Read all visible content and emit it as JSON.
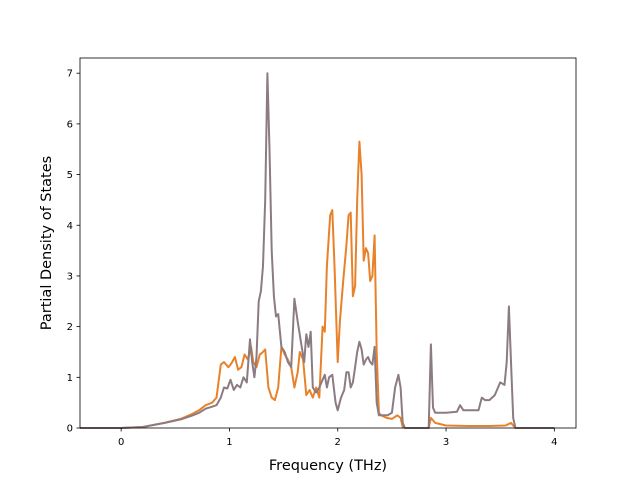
{
  "chart_data": {
    "type": "line",
    "title": "",
    "xlabel": "Frequency (THz)",
    "ylabel": "Partial Density of States",
    "xlim": [
      -0.38,
      4.2
    ],
    "ylim": [
      0,
      7.3
    ],
    "xticks": [
      0,
      1,
      2,
      3,
      4
    ],
    "yticks": [
      0,
      1,
      2,
      3,
      4,
      5,
      6,
      7
    ],
    "grid": false,
    "legend": "none",
    "series": [
      {
        "color": "#e8822a",
        "points": [
          [
            -0.38,
            0
          ],
          [
            0.0,
            0.0
          ],
          [
            0.2,
            0.02
          ],
          [
            0.4,
            0.1
          ],
          [
            0.55,
            0.18
          ],
          [
            0.65,
            0.27
          ],
          [
            0.72,
            0.35
          ],
          [
            0.78,
            0.45
          ],
          [
            0.84,
            0.5
          ],
          [
            0.88,
            0.6
          ],
          [
            0.92,
            1.25
          ],
          [
            0.95,
            1.3
          ],
          [
            0.99,
            1.2
          ],
          [
            1.02,
            1.28
          ],
          [
            1.05,
            1.4
          ],
          [
            1.08,
            1.15
          ],
          [
            1.11,
            1.2
          ],
          [
            1.14,
            1.45
          ],
          [
            1.17,
            1.35
          ],
          [
            1.2,
            1.6
          ],
          [
            1.22,
            1.3
          ],
          [
            1.25,
            1.2
          ],
          [
            1.28,
            1.45
          ],
          [
            1.3,
            1.48
          ],
          [
            1.33,
            1.55
          ],
          [
            1.36,
            0.8
          ],
          [
            1.39,
            0.6
          ],
          [
            1.42,
            0.55
          ],
          [
            1.45,
            0.8
          ],
          [
            1.48,
            1.6
          ],
          [
            1.51,
            1.45
          ],
          [
            1.54,
            1.35
          ],
          [
            1.57,
            1.2
          ],
          [
            1.6,
            0.8
          ],
          [
            1.63,
            1.1
          ],
          [
            1.65,
            1.5
          ],
          [
            1.68,
            1.35
          ],
          [
            1.71,
            0.65
          ],
          [
            1.74,
            0.75
          ],
          [
            1.77,
            0.6
          ],
          [
            1.8,
            0.8
          ],
          [
            1.83,
            0.6
          ],
          [
            1.86,
            2.0
          ],
          [
            1.88,
            1.9
          ],
          [
            1.9,
            3.2
          ],
          [
            1.93,
            4.2
          ],
          [
            1.95,
            4.3
          ],
          [
            1.97,
            3.2
          ],
          [
            2.0,
            1.3
          ],
          [
            2.02,
            2.1
          ],
          [
            2.05,
            2.9
          ],
          [
            2.08,
            3.6
          ],
          [
            2.1,
            4.2
          ],
          [
            2.12,
            4.25
          ],
          [
            2.14,
            2.6
          ],
          [
            2.16,
            2.8
          ],
          [
            2.18,
            4.5
          ],
          [
            2.2,
            5.65
          ],
          [
            2.22,
            5.0
          ],
          [
            2.24,
            3.3
          ],
          [
            2.26,
            3.55
          ],
          [
            2.28,
            3.45
          ],
          [
            2.3,
            2.9
          ],
          [
            2.32,
            3.0
          ],
          [
            2.34,
            3.8
          ],
          [
            2.36,
            1.5
          ],
          [
            2.38,
            0.3
          ],
          [
            2.4,
            0.25
          ],
          [
            2.45,
            0.2
          ],
          [
            2.5,
            0.18
          ],
          [
            2.55,
            0.25
          ],
          [
            2.58,
            0.2
          ],
          [
            2.6,
            0.02
          ],
          [
            2.62,
            0.0
          ],
          [
            2.84,
            0.0
          ],
          [
            2.86,
            0.2
          ],
          [
            2.9,
            0.1
          ],
          [
            3.0,
            0.05
          ],
          [
            3.2,
            0.04
          ],
          [
            3.4,
            0.04
          ],
          [
            3.55,
            0.05
          ],
          [
            3.6,
            0.1
          ],
          [
            3.62,
            0.05
          ],
          [
            3.64,
            0.0
          ],
          [
            4.0,
            0.0
          ]
        ]
      },
      {
        "color": "#8c7b82",
        "points": [
          [
            -0.38,
            0
          ],
          [
            0.0,
            0.0
          ],
          [
            0.2,
            0.02
          ],
          [
            0.4,
            0.1
          ],
          [
            0.55,
            0.17
          ],
          [
            0.65,
            0.24
          ],
          [
            0.72,
            0.3
          ],
          [
            0.78,
            0.38
          ],
          [
            0.84,
            0.42
          ],
          [
            0.88,
            0.45
          ],
          [
            0.92,
            0.6
          ],
          [
            0.95,
            0.8
          ],
          [
            0.98,
            0.78
          ],
          [
            1.01,
            0.95
          ],
          [
            1.04,
            0.75
          ],
          [
            1.07,
            0.85
          ],
          [
            1.1,
            0.8
          ],
          [
            1.13,
            1.0
          ],
          [
            1.16,
            0.9
          ],
          [
            1.19,
            1.75
          ],
          [
            1.21,
            1.3
          ],
          [
            1.23,
            1.0
          ],
          [
            1.25,
            1.4
          ],
          [
            1.27,
            2.5
          ],
          [
            1.29,
            2.7
          ],
          [
            1.31,
            3.2
          ],
          [
            1.33,
            4.5
          ],
          [
            1.35,
            7.0
          ],
          [
            1.37,
            5.5
          ],
          [
            1.39,
            3.5
          ],
          [
            1.41,
            2.6
          ],
          [
            1.43,
            2.2
          ],
          [
            1.45,
            2.25
          ],
          [
            1.48,
            1.6
          ],
          [
            1.51,
            1.5
          ],
          [
            1.54,
            1.3
          ],
          [
            1.57,
            1.2
          ],
          [
            1.6,
            2.55
          ],
          [
            1.63,
            2.1
          ],
          [
            1.66,
            1.7
          ],
          [
            1.69,
            1.3
          ],
          [
            1.71,
            1.85
          ],
          [
            1.73,
            1.6
          ],
          [
            1.75,
            1.9
          ],
          [
            1.77,
            0.8
          ],
          [
            1.8,
            0.7
          ],
          [
            1.83,
            0.8
          ],
          [
            1.86,
            0.95
          ],
          [
            1.88,
            1.05
          ],
          [
            1.9,
            0.8
          ],
          [
            1.92,
            1.0
          ],
          [
            1.95,
            1.05
          ],
          [
            1.98,
            0.5
          ],
          [
            2.0,
            0.35
          ],
          [
            2.03,
            0.6
          ],
          [
            2.06,
            0.75
          ],
          [
            2.08,
            1.1
          ],
          [
            2.1,
            1.1
          ],
          [
            2.12,
            0.8
          ],
          [
            2.14,
            0.9
          ],
          [
            2.16,
            1.2
          ],
          [
            2.18,
            1.5
          ],
          [
            2.2,
            1.7
          ],
          [
            2.22,
            1.55
          ],
          [
            2.24,
            1.25
          ],
          [
            2.26,
            1.35
          ],
          [
            2.28,
            1.4
          ],
          [
            2.3,
            1.3
          ],
          [
            2.32,
            1.25
          ],
          [
            2.34,
            1.6
          ],
          [
            2.36,
            0.5
          ],
          [
            2.38,
            0.25
          ],
          [
            2.42,
            0.25
          ],
          [
            2.46,
            0.25
          ],
          [
            2.5,
            0.3
          ],
          [
            2.53,
            0.8
          ],
          [
            2.56,
            1.05
          ],
          [
            2.58,
            0.8
          ],
          [
            2.6,
            0.1
          ],
          [
            2.62,
            0.0
          ],
          [
            2.84,
            0.0
          ],
          [
            2.86,
            1.65
          ],
          [
            2.88,
            0.4
          ],
          [
            2.9,
            0.3
          ],
          [
            3.0,
            0.3
          ],
          [
            3.1,
            0.32
          ],
          [
            3.13,
            0.45
          ],
          [
            3.16,
            0.35
          ],
          [
            3.3,
            0.35
          ],
          [
            3.33,
            0.6
          ],
          [
            3.36,
            0.55
          ],
          [
            3.4,
            0.55
          ],
          [
            3.45,
            0.65
          ],
          [
            3.5,
            0.9
          ],
          [
            3.54,
            0.85
          ],
          [
            3.56,
            1.3
          ],
          [
            3.58,
            2.4
          ],
          [
            3.6,
            1.3
          ],
          [
            3.62,
            0.2
          ],
          [
            3.64,
            0.0
          ],
          [
            4.0,
            0.0
          ]
        ]
      }
    ]
  }
}
